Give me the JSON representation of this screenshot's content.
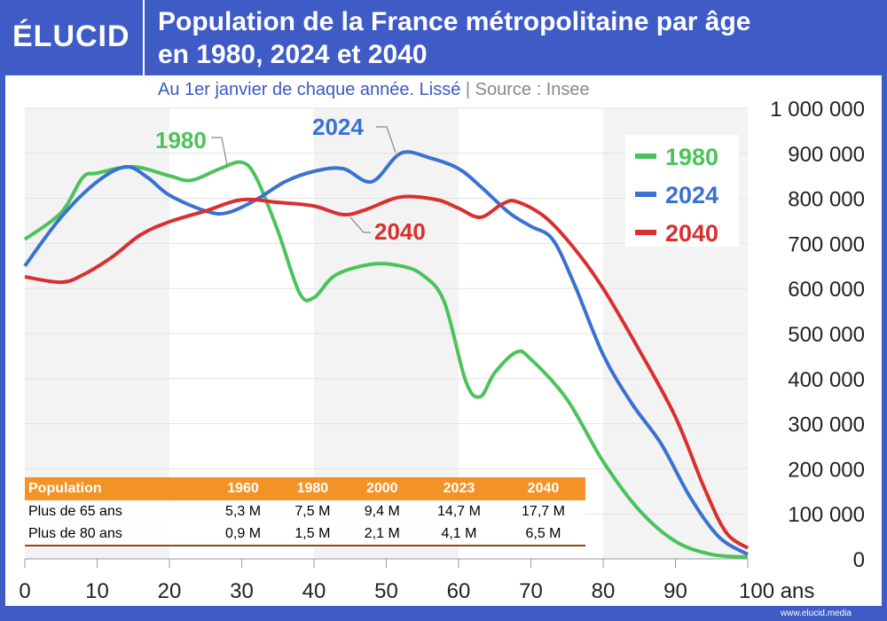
{
  "brand": "ÉLUCID",
  "title_line1": "Population de la France métropolitaine par âge",
  "title_line2": "en 1980, 2024 et 2040",
  "subtitle": "Au 1er janvier de chaque année. Lissé",
  "source": "|  Source : Insee",
  "footer": "www.elucid.media",
  "chart_data": {
    "type": "line",
    "xlabel_suffix": "ans",
    "xlim": [
      0,
      100
    ],
    "ylim": [
      0,
      1000000
    ],
    "x_ticks": [
      "0",
      "10",
      "20",
      "30",
      "40",
      "50",
      "60",
      "70",
      "80",
      "90",
      "100 ans"
    ],
    "y_ticks": [
      "0",
      "100 000",
      "200 000",
      "300 000",
      "400 000",
      "500 000",
      "600 000",
      "700 000",
      "800 000",
      "900 000",
      "1 000 000"
    ],
    "legend_position": "top-right",
    "series": [
      {
        "name": "1980",
        "color": "#4cc35a",
        "points": [
          [
            0,
            709000
          ],
          [
            5,
            768000
          ],
          [
            8,
            846000
          ],
          [
            10,
            856000
          ],
          [
            15,
            870000
          ],
          [
            20,
            850000
          ],
          [
            23,
            840000
          ],
          [
            27,
            866000
          ],
          [
            30,
            880000
          ],
          [
            32,
            846000
          ],
          [
            35,
            728000
          ],
          [
            38,
            590000
          ],
          [
            40,
            580000
          ],
          [
            43,
            630000
          ],
          [
            48,
            654000
          ],
          [
            52,
            650000
          ],
          [
            55,
            630000
          ],
          [
            58,
            571000
          ],
          [
            61,
            394000
          ],
          [
            63,
            360000
          ],
          [
            65,
            413000
          ],
          [
            68,
            459000
          ],
          [
            70,
            443000
          ],
          [
            75,
            354000
          ],
          [
            80,
            216000
          ],
          [
            85,
            108000
          ],
          [
            90,
            39000
          ],
          [
            95,
            10000
          ],
          [
            100,
            4000
          ]
        ]
      },
      {
        "name": "2024",
        "color": "#3a72d0",
        "points": [
          [
            0,
            650000
          ],
          [
            5,
            758000
          ],
          [
            10,
            837000
          ],
          [
            14,
            870000
          ],
          [
            17,
            846000
          ],
          [
            20,
            807000
          ],
          [
            25,
            772000
          ],
          [
            28,
            768000
          ],
          [
            32,
            797000
          ],
          [
            36,
            837000
          ],
          [
            40,
            860000
          ],
          [
            44,
            866000
          ],
          [
            48,
            837000
          ],
          [
            52,
            900000
          ],
          [
            56,
            890000
          ],
          [
            60,
            866000
          ],
          [
            63,
            827000
          ],
          [
            67,
            768000
          ],
          [
            70,
            738000
          ],
          [
            73,
            709000
          ],
          [
            76,
            610000
          ],
          [
            80,
            453000
          ],
          [
            84,
            344000
          ],
          [
            88,
            256000
          ],
          [
            92,
            138000
          ],
          [
            96,
            49000
          ],
          [
            100,
            10000
          ]
        ]
      },
      {
        "name": "2040",
        "color": "#d9302f",
        "points": [
          [
            0,
            626000
          ],
          [
            5,
            614000
          ],
          [
            8,
            630000
          ],
          [
            12,
            669000
          ],
          [
            16,
            719000
          ],
          [
            20,
            748000
          ],
          [
            25,
            772000
          ],
          [
            30,
            797000
          ],
          [
            35,
            791000
          ],
          [
            40,
            783000
          ],
          [
            44,
            764000
          ],
          [
            47,
            774000
          ],
          [
            52,
            803000
          ],
          [
            57,
            797000
          ],
          [
            60,
            778000
          ],
          [
            63,
            758000
          ],
          [
            66,
            787000
          ],
          [
            68,
            793000
          ],
          [
            72,
            758000
          ],
          [
            76,
            689000
          ],
          [
            80,
            600000
          ],
          [
            85,
            463000
          ],
          [
            90,
            315000
          ],
          [
            94,
            157000
          ],
          [
            97,
            59000
          ],
          [
            100,
            24000
          ]
        ]
      }
    ],
    "annotations": [
      {
        "text": "1980",
        "series": "1980"
      },
      {
        "text": "2024",
        "series": "2024"
      },
      {
        "text": "2040",
        "series": "2040"
      }
    ]
  },
  "table": {
    "headers": [
      "Population",
      "1960",
      "1980",
      "2000",
      "2023",
      "2040"
    ],
    "rows": [
      [
        "Plus de 65 ans",
        "5,3 M",
        "7,5 M",
        "9,4 M",
        "14,7 M",
        "17,7 M"
      ],
      [
        "Plus de 80 ans",
        "0,9 M",
        "1,5 M",
        "2,1 M",
        "4,1 M",
        "6,5 M"
      ]
    ],
    "header_color": "#f39325"
  }
}
